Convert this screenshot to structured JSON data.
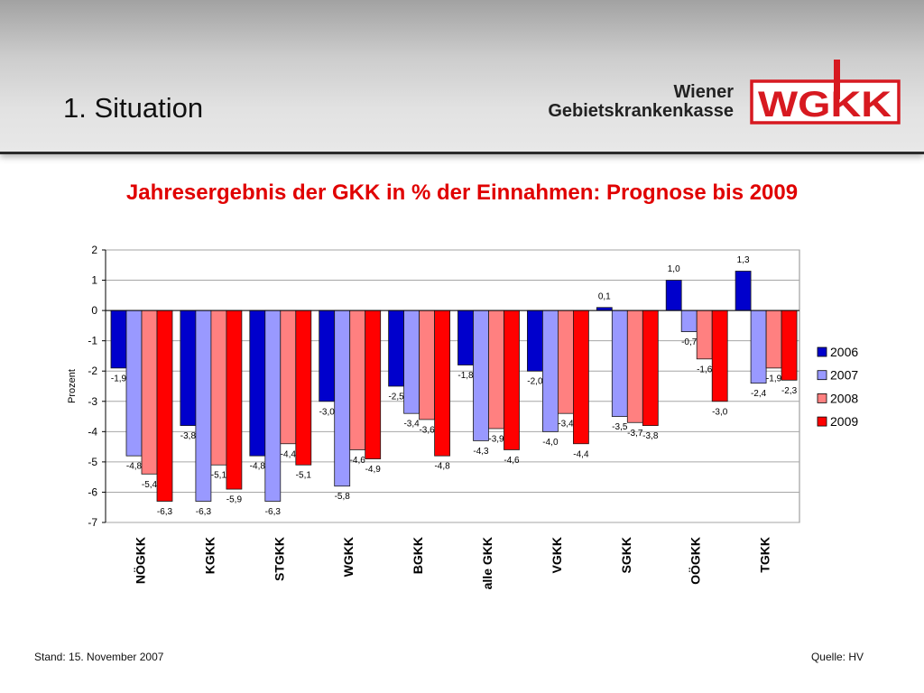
{
  "slide": {
    "title": "1. Situation"
  },
  "logo": {
    "name_line1": "Wiener",
    "name_line2": "Gebietskrankenkasse",
    "mark": "WGKK",
    "color": "#d71920"
  },
  "colors": {
    "heading_red": "#e00000",
    "header_rule": "#2b2b2b"
  },
  "footer": {
    "left": "Stand: 15. November 2007",
    "right": "Quelle: HV"
  },
  "chart_data": {
    "type": "bar",
    "title": "Jahresergebnis der GKK in % der Einnahmen: Prognose bis 2009",
    "ylabel": "Prozent",
    "ylim": [
      -7,
      2
    ],
    "yticks": [
      2,
      1,
      0,
      -1,
      -2,
      -3,
      -4,
      -5,
      -6,
      -7
    ],
    "grid": true,
    "legend": "right",
    "data_labels": true,
    "categories": [
      "NÖGKK",
      "KGKK",
      "STGKK",
      "WGKK",
      "BGKK",
      "alle GKK",
      "VGKK",
      "SGKK",
      "OÖGKK",
      "TGKK"
    ],
    "series": [
      {
        "name": "2006",
        "color": "#0000cc",
        "values": [
          -1.9,
          -3.8,
          -4.8,
          -3.0,
          -2.5,
          -1.8,
          -2.0,
          0.1,
          1.0,
          1.3
        ]
      },
      {
        "name": "2007",
        "color": "#9999ff",
        "values": [
          -4.8,
          -6.3,
          -6.3,
          -5.8,
          -3.4,
          -4.3,
          -4.0,
          -3.5,
          -0.7,
          -2.4
        ]
      },
      {
        "name": "2008",
        "color": "#ff8080",
        "values": [
          -5.4,
          -5.1,
          -4.4,
          -4.6,
          -3.6,
          -3.9,
          -3.4,
          -3.7,
          -1.6,
          -1.9
        ]
      },
      {
        "name": "2009",
        "color": "#ff0000",
        "values": [
          -6.3,
          -5.9,
          -5.1,
          -4.9,
          -4.8,
          -4.6,
          -4.4,
          -3.8,
          -3.0,
          -2.3
        ]
      }
    ]
  }
}
